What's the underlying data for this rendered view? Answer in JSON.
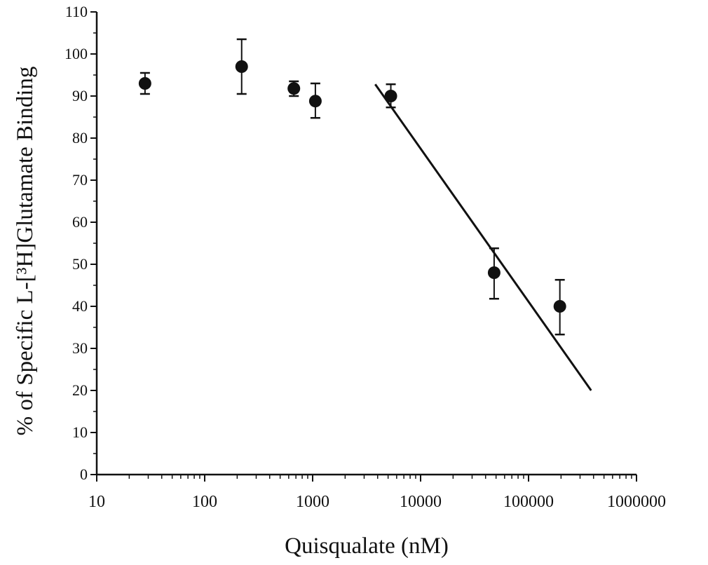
{
  "chart_data": {
    "type": "scatter",
    "xlabel": "Quisqualate (nM)",
    "ylabel": "% of Specific L-[³H]Glutamate Binding",
    "x_scale": "log",
    "xlim": [
      10,
      1000000
    ],
    "ylim": [
      0,
      110
    ],
    "x_ticks": [
      10,
      100,
      1000,
      10000,
      100000,
      1000000
    ],
    "x_tick_labels": [
      "10",
      "100",
      "1000",
      "10000",
      "100000",
      "1000000"
    ],
    "y_ticks": [
      0,
      10,
      20,
      30,
      40,
      50,
      60,
      70,
      80,
      90,
      100,
      110
    ],
    "y_tick_labels": [
      "0",
      "10",
      "20",
      "30",
      "40",
      "50",
      "60",
      "70",
      "80",
      "90",
      "100",
      "110"
    ],
    "grid": false,
    "legend": "none",
    "series": [
      {
        "points": [
          {
            "x": 28,
            "y": 93,
            "err_low": 90.5,
            "err_high": 95.5
          },
          {
            "x": 220,
            "y": 97,
            "err_low": 90.5,
            "err_high": 103.5
          },
          {
            "x": 670,
            "y": 91.8,
            "err_low": 90,
            "err_high": 93.5
          },
          {
            "x": 1060,
            "y": 88.8,
            "err_low": 84.8,
            "err_high": 93
          },
          {
            "x": 5300,
            "y": 90,
            "err_low": 87.3,
            "err_high": 92.8
          },
          {
            "x": 48000,
            "y": 48,
            "err_low": 41.8,
            "err_high": 53.8
          },
          {
            "x": 195000,
            "y": 40,
            "err_low": 33.3,
            "err_high": 46.3
          }
        ]
      }
    ],
    "fit_line": {
      "x": [
        3800,
        380000
      ],
      "y": [
        92.8,
        20
      ]
    },
    "colors": {
      "marker": "#111111",
      "line": "#111111",
      "axis": "#111111"
    }
  }
}
